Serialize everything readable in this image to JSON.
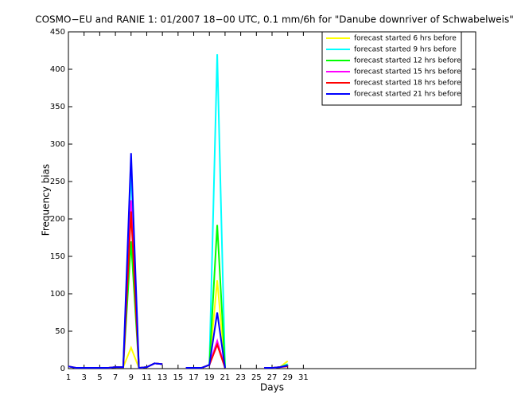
{
  "chart_data": {
    "type": "line",
    "title": "COSMO−EU and RANIE 1: 01/2007 18−00 UTC, 0.1 mm/6h for \"Danube downriver of Schwabelweis\"",
    "x_label": "Days",
    "y_label": "Frequency bias",
    "x": [
      1,
      2,
      3,
      4,
      5,
      6,
      7,
      8,
      9,
      10,
      11,
      12,
      13,
      14,
      15,
      16,
      17,
      18,
      19,
      20,
      21,
      22,
      23,
      24,
      25,
      26,
      27,
      28,
      29,
      30
    ],
    "xlim": [
      1,
      53
    ],
    "xticks": [
      1,
      3,
      5,
      7,
      9,
      11,
      13,
      15,
      17,
      19,
      21,
      23,
      25,
      27,
      29,
      31
    ],
    "ylim": [
      0,
      450
    ],
    "yticks": [
      0,
      50,
      100,
      150,
      200,
      250,
      300,
      350,
      400,
      450
    ],
    "series": [
      {
        "name": "forecast started 6 hrs before",
        "color": "#ffff00",
        "values": [
          3,
          1,
          1,
          1,
          1,
          1,
          2,
          2,
          28,
          1,
          2,
          7,
          6,
          null,
          null,
          1,
          1,
          1,
          5,
          118,
          1,
          null,
          null,
          null,
          null,
          1,
          1,
          2,
          10,
          null
        ]
      },
      {
        "name": "forecast started 9 hrs before",
        "color": "#00ffff",
        "values": [
          3,
          1,
          1,
          1,
          1,
          1,
          2,
          2,
          265,
          1,
          2,
          7,
          6,
          null,
          null,
          1,
          1,
          1,
          5,
          420,
          1,
          null,
          null,
          null,
          null,
          1,
          1,
          2,
          6,
          null
        ]
      },
      {
        "name": "forecast started 12 hrs before",
        "color": "#00ff00",
        "values": [
          3,
          1,
          1,
          1,
          1,
          1,
          2,
          2,
          170,
          1,
          2,
          7,
          6,
          null,
          null,
          1,
          1,
          1,
          5,
          192,
          1,
          null,
          null,
          null,
          null,
          1,
          1,
          2,
          5,
          null
        ]
      },
      {
        "name": "forecast started 15 hrs before",
        "color": "#ff00ff",
        "values": [
          3,
          1,
          1,
          1,
          1,
          1,
          2,
          2,
          225,
          1,
          2,
          7,
          6,
          null,
          null,
          1,
          1,
          1,
          5,
          37,
          1,
          null,
          null,
          null,
          null,
          1,
          1,
          2,
          4,
          null
        ]
      },
      {
        "name": "forecast started 18 hrs before",
        "color": "#ff0000",
        "values": [
          3,
          1,
          1,
          1,
          1,
          1,
          2,
          2,
          210,
          1,
          2,
          7,
          6,
          null,
          null,
          1,
          1,
          1,
          5,
          32,
          1,
          null,
          null,
          null,
          null,
          1,
          1,
          2,
          3,
          null
        ]
      },
      {
        "name": "forecast started 21 hrs before",
        "color": "#0000ff",
        "values": [
          3,
          1,
          1,
          1,
          1,
          1,
          2,
          2,
          288,
          1,
          2,
          7,
          6,
          null,
          null,
          1,
          1,
          1,
          5,
          75,
          1,
          null,
          null,
          null,
          null,
          1,
          1,
          2,
          4,
          null
        ]
      }
    ]
  }
}
